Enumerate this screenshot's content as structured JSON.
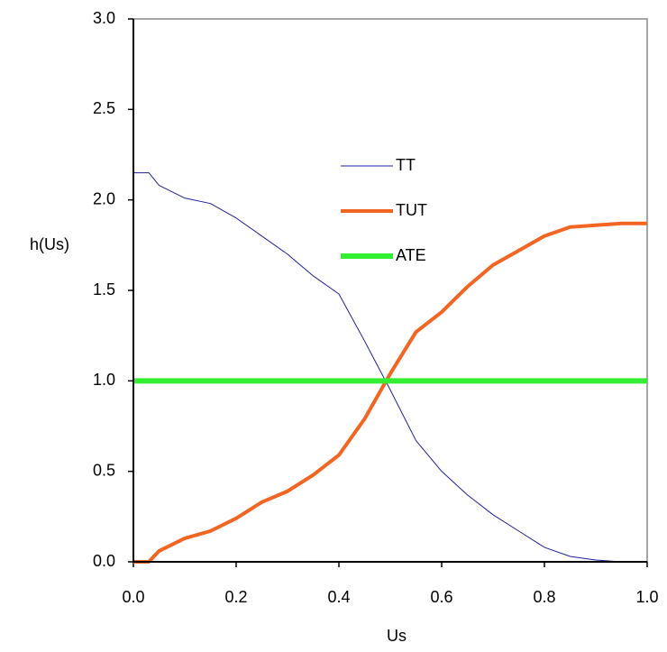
{
  "chart_data": {
    "type": "line",
    "x_label": "Us",
    "y_label": "h(Us)",
    "x": [
      0,
      0.03,
      0.05,
      0.1,
      0.15,
      0.2,
      0.25,
      0.3,
      0.35,
      0.4,
      0.45,
      0.5,
      0.55,
      0.6,
      0.65,
      0.7,
      0.75,
      0.8,
      0.85,
      0.9,
      0.95,
      1.0
    ],
    "series": [
      {
        "name": "TT",
        "color": "#1f1f9a",
        "values": [
          2.15,
          2.15,
          2.08,
          2.01,
          1.98,
          1.9,
          1.8,
          1.7,
          1.58,
          1.48,
          1.22,
          0.95,
          0.67,
          0.5,
          0.37,
          0.26,
          0.17,
          0.08,
          0.03,
          0.01,
          0.0,
          0.0
        ]
      },
      {
        "name": "TUT",
        "color": "#f26522",
        "values": [
          0.0,
          0.0,
          0.06,
          0.13,
          0.17,
          0.24,
          0.33,
          0.39,
          0.48,
          0.59,
          0.79,
          1.04,
          1.27,
          1.38,
          1.52,
          1.64,
          1.72,
          1.8,
          1.85,
          1.86,
          1.87,
          1.87
        ]
      },
      {
        "name": "ATE",
        "color": "#33ee33",
        "values": [
          1,
          1,
          1,
          1,
          1,
          1,
          1,
          1,
          1,
          1,
          1,
          1,
          1,
          1,
          1,
          1,
          1,
          1,
          1,
          1,
          1,
          1
        ]
      }
    ],
    "xlim": [
      0,
      1.0
    ],
    "xticks": [
      {
        "value": 0,
        "label": "0.0"
      },
      {
        "value": 0.2,
        "label": "0.2"
      },
      {
        "value": 0.4,
        "label": "0.4"
      },
      {
        "value": 0.6,
        "label": "0.6"
      },
      {
        "value": 0.8,
        "label": "0.8"
      },
      {
        "value": 1.0,
        "label": "1.0"
      }
    ],
    "ylim": [
      0,
      3.0
    ],
    "yticks": [
      {
        "value": 0,
        "label": "0.0"
      },
      {
        "value": 0.5,
        "label": "0.5"
      },
      {
        "value": 1.0,
        "label": "1.0"
      },
      {
        "value": 1.5,
        "label": "1.5"
      },
      {
        "value": 2.0,
        "label": "2.0"
      },
      {
        "value": 2.5,
        "label": "2.5"
      },
      {
        "value": 3.0,
        "label": "3.0"
      }
    ],
    "legend": "top"
  }
}
